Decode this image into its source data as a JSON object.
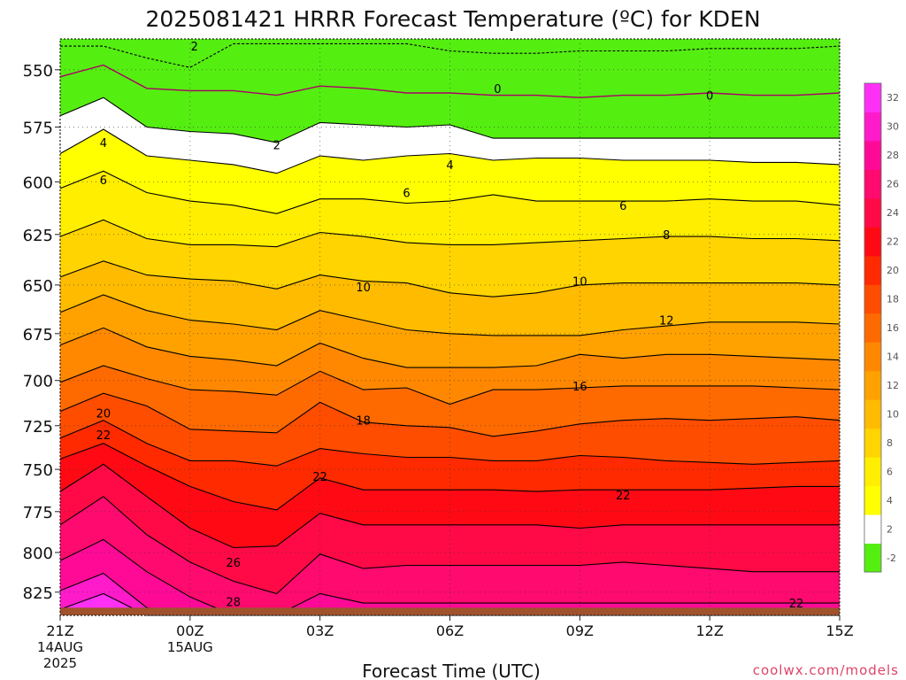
{
  "chart_data": {
    "type": "heatmap",
    "title": "2025081421 HRRR Forecast Temperature (ºC) for KDEN",
    "xlabel": "Forecast Time (UTC)",
    "ylabel": "",
    "credit": "coolwx.com/models",
    "x_range_hours": [
      0,
      18
    ],
    "y_range_hpa": [
      840,
      537
    ],
    "y_scale": "log-pressure",
    "x_ticks": [
      {
        "hour": 0,
        "label": "21Z",
        "sub1": "14AUG",
        "sub2": "2025"
      },
      {
        "hour": 3,
        "label": "00Z",
        "sub1": "15AUG",
        "sub2": ""
      },
      {
        "hour": 6,
        "label": "03Z",
        "sub1": "",
        "sub2": ""
      },
      {
        "hour": 9,
        "label": "06Z",
        "sub1": "",
        "sub2": ""
      },
      {
        "hour": 12,
        "label": "09Z",
        "sub1": "",
        "sub2": ""
      },
      {
        "hour": 15,
        "label": "12Z",
        "sub1": "",
        "sub2": ""
      },
      {
        "hour": 18,
        "label": "15Z",
        "sub1": "",
        "sub2": ""
      }
    ],
    "y_ticks": [
      550,
      575,
      600,
      625,
      650,
      675,
      700,
      725,
      750,
      775,
      800,
      825
    ],
    "grid": true,
    "colorbar": {
      "placement": "right",
      "levels": [
        -2,
        2,
        4,
        6,
        8,
        10,
        12,
        14,
        16,
        18,
        20,
        22,
        24,
        26,
        28,
        30,
        32
      ],
      "labels": [
        "-2",
        "2",
        "4",
        "6",
        "8",
        "10",
        "12",
        "14",
        "16",
        "18",
        "20",
        "22",
        "24",
        "26",
        "28",
        "30",
        "32"
      ],
      "colors": [
        "#55ee11",
        "#ffffff",
        "#ffff00",
        "#ffee00",
        "#ffd400",
        "#ffbb00",
        "#ffa200",
        "#ff8800",
        "#ff6a00",
        "#ff4d00",
        "#ff2a00",
        "#ff0a14",
        "#ff0a46",
        "#ff0a6e",
        "#ff0a96",
        "#ff1aca",
        "#ff30f6"
      ],
      "tick_color": "#555555"
    },
    "ground": {
      "color": "#a0522d",
      "pressure_hpa": 835
    },
    "contour_color": "#000000",
    "zero_line_color": "#aa0066",
    "contour_times": [
      0,
      1,
      2,
      3,
      4,
      5,
      6,
      7,
      8,
      9,
      10,
      11,
      12,
      13,
      14,
      15,
      16,
      17,
      18
    ],
    "contours": [
      {
        "level": -2,
        "p": [
          540,
          540,
          545,
          549,
          539,
          539,
          539,
          539,
          539,
          542,
          543,
          543,
          542,
          542,
          542,
          541,
          541,
          541,
          540
        ]
      },
      {
        "level": 0,
        "p": [
          553,
          548,
          558,
          559,
          559,
          561,
          557,
          558,
          560,
          560,
          561,
          561,
          562,
          561,
          561,
          560,
          561,
          561,
          560
        ]
      },
      {
        "level": 2,
        "p": [
          570,
          562,
          575,
          577,
          578,
          582,
          573,
          574,
          575,
          574,
          580,
          580,
          580,
          580,
          580,
          580,
          580,
          580,
          580
        ]
      },
      {
        "level": 4,
        "p": [
          587,
          576,
          588,
          590,
          592,
          596,
          588,
          590,
          588,
          587,
          590,
          589,
          589,
          590,
          590,
          590,
          591,
          591,
          592
        ]
      },
      {
        "level": 6,
        "p": [
          603,
          595,
          605,
          609,
          611,
          615,
          608,
          608,
          610,
          609,
          606,
          609,
          609,
          609,
          609,
          608,
          609,
          609,
          611
        ]
      },
      {
        "level": 8,
        "p": [
          626,
          618,
          627,
          630,
          630,
          631,
          624,
          626,
          629,
          630,
          630,
          629,
          628,
          627,
          626,
          626,
          627,
          627,
          628
        ]
      },
      {
        "level": 10,
        "p": [
          646,
          638,
          645,
          647,
          648,
          652,
          645,
          648,
          649,
          654,
          656,
          654,
          650,
          649,
          649,
          649,
          649,
          649,
          650
        ]
      },
      {
        "level": 12,
        "p": [
          664,
          655,
          663,
          668,
          670,
          673,
          663,
          668,
          673,
          675,
          676,
          676,
          676,
          673,
          671,
          669,
          669,
          669,
          670
        ]
      },
      {
        "level": 14,
        "p": [
          681,
          672,
          682,
          687,
          689,
          692,
          680,
          688,
          693,
          693,
          693,
          692,
          686,
          688,
          686,
          686,
          687,
          688,
          689
        ]
      },
      {
        "level": 16,
        "p": [
          701,
          692,
          699,
          705,
          706,
          708,
          695,
          705,
          704,
          713,
          705,
          705,
          704,
          703,
          703,
          703,
          703,
          704,
          705
        ]
      },
      {
        "level": 18,
        "p": [
          717,
          707,
          714,
          727,
          728,
          729,
          712,
          723,
          725,
          726,
          731,
          728,
          724,
          722,
          721,
          722,
          721,
          720,
          722
        ]
      },
      {
        "level": 20,
        "p": [
          732,
          722,
          735,
          745,
          745,
          748,
          738,
          741,
          743,
          743,
          745,
          745,
          742,
          743,
          745,
          746,
          747,
          746,
          745
        ]
      },
      {
        "level": 22,
        "p": [
          744,
          735,
          748,
          760,
          769,
          774,
          755,
          762,
          762,
          762,
          762,
          763,
          762,
          762,
          762,
          762,
          761,
          760,
          760
        ]
      },
      {
        "level": 24,
        "p": [
          763,
          747,
          766,
          785,
          797,
          796,
          776,
          783,
          783,
          783,
          783,
          783,
          785,
          783,
          783,
          783,
          783,
          783,
          783
        ]
      },
      {
        "level": 26,
        "p": [
          783,
          766,
          789,
          806,
          818,
          826,
          801,
          810,
          808,
          808,
          808,
          808,
          808,
          806,
          808,
          810,
          812,
          812,
          812
        ]
      },
      {
        "level": 28,
        "p": [
          805,
          792,
          812,
          828,
          840,
          840,
          826,
          832,
          832,
          832,
          832,
          832,
          832,
          832,
          832,
          832,
          832,
          832,
          832
        ]
      },
      {
        "level": 30,
        "p": [
          824,
          813,
          835,
          840,
          840,
          840,
          840,
          840,
          840,
          840,
          840,
          840,
          840,
          840,
          840,
          840,
          840,
          840,
          840
        ]
      },
      {
        "level": 32,
        "p": [
          836,
          826,
          840,
          840,
          840,
          840,
          840,
          840,
          840,
          840,
          840,
          840,
          840,
          840,
          840,
          840,
          840,
          840,
          840
        ]
      }
    ],
    "contour_labels": [
      {
        "level": 2,
        "text": "2",
        "hour": 3.1,
        "p": 540
      },
      {
        "level": 0,
        "text": "0",
        "hour": 10.1,
        "p": 558
      },
      {
        "level": 0,
        "text": "0",
        "hour": 15.0,
        "p": 561
      },
      {
        "level": 4,
        "text": "4",
        "hour": 1.0,
        "p": 582
      },
      {
        "level": 2,
        "text": "2",
        "hour": 5.0,
        "p": 583
      },
      {
        "level": 4,
        "text": "4",
        "hour": 9.0,
        "p": 592
      },
      {
        "level": 6,
        "text": "6",
        "hour": 1.0,
        "p": 599
      },
      {
        "level": 6,
        "text": "6",
        "hour": 8.0,
        "p": 605
      },
      {
        "level": 6,
        "text": "6",
        "hour": 13.0,
        "p": 611
      },
      {
        "level": 8,
        "text": "8",
        "hour": 14.0,
        "p": 625
      },
      {
        "level": 10,
        "text": "10",
        "hour": 7.0,
        "p": 651
      },
      {
        "level": 10,
        "text": "10",
        "hour": 12.0,
        "p": 648
      },
      {
        "level": 12,
        "text": "12",
        "hour": 14.0,
        "p": 668
      },
      {
        "level": 16,
        "text": "16",
        "hour": 12.0,
        "p": 703
      },
      {
        "level": 20,
        "text": "20",
        "hour": 1.0,
        "p": 718
      },
      {
        "level": 18,
        "text": "18",
        "hour": 7.0,
        "p": 722
      },
      {
        "level": 22,
        "text": "22",
        "hour": 1.0,
        "p": 730
      },
      {
        "level": 22,
        "text": "22",
        "hour": 6.0,
        "p": 754
      },
      {
        "level": 22,
        "text": "22",
        "hour": 13.0,
        "p": 765
      },
      {
        "level": 26,
        "text": "26",
        "hour": 4.0,
        "p": 806
      },
      {
        "level": 28,
        "text": "28",
        "hour": 4.0,
        "p": 831
      },
      {
        "level": 22,
        "text": "22",
        "hour": 17.0,
        "p": 832
      }
    ]
  }
}
